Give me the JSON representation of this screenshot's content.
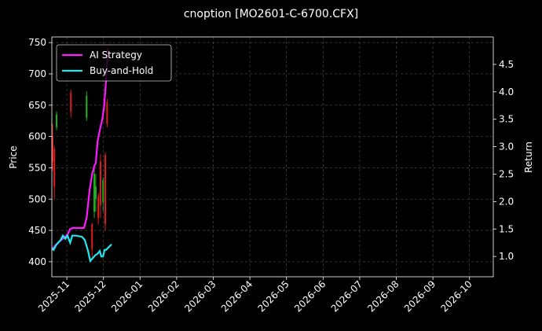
{
  "chart_data": {
    "type": "candlestick",
    "title": "cnoption [MO2601-C-6700.CFX]",
    "y_label": "Price",
    "y2_label": "Return",
    "grid": true,
    "legend": "upper left",
    "up_color": "#1db31d",
    "down_color": "#e01b1b",
    "xlim": [
      -0.41,
      11.65
    ],
    "ylim": [
      376,
      759
    ],
    "y2lim": [
      0.63,
      5.0
    ],
    "xticks": [
      {
        "value": 0,
        "label": "2025-11"
      },
      {
        "value": 1,
        "label": "2025-12"
      },
      {
        "value": 2,
        "label": "2026-01"
      },
      {
        "value": 3,
        "label": "2026-02"
      },
      {
        "value": 4,
        "label": "2026-03"
      },
      {
        "value": 5,
        "label": "2026-04"
      },
      {
        "value": 6,
        "label": "2026-05"
      },
      {
        "value": 7,
        "label": "2026-06"
      },
      {
        "value": 8,
        "label": "2026-07"
      },
      {
        "value": 9,
        "label": "2026-08"
      },
      {
        "value": 10,
        "label": "2026-09"
      },
      {
        "value": 11,
        "label": "2026-10"
      }
    ],
    "yticks": [
      400,
      450,
      500,
      550,
      600,
      650,
      700,
      750
    ],
    "y2ticks": [
      {
        "value": 1,
        "label": "1.0"
      },
      {
        "value": 1.5,
        "label": "1.5"
      },
      {
        "value": 2,
        "label": "2.0"
      },
      {
        "value": 2.5,
        "label": "2.5"
      },
      {
        "value": 3,
        "label": "3.0"
      },
      {
        "value": 3.5,
        "label": "3.5"
      },
      {
        "value": 4,
        "label": "4.0"
      },
      {
        "value": 4.5,
        "label": "4.5"
      }
    ],
    "x": [
      -0.39,
      -0.34,
      -0.28,
      0.11,
      0.54,
      0.69,
      0.75,
      0.79,
      0.86,
      0.92,
      0.99,
      1.05,
      1.1
    ],
    "open": [
      600,
      580,
      615,
      670,
      630,
      460,
      480,
      500,
      505,
      560,
      495,
      570,
      655
    ],
    "high": [
      620,
      585,
      640,
      675,
      672,
      462,
      550,
      540,
      510,
      572,
      535,
      575,
      660
    ],
    "low": [
      545,
      500,
      610,
      630,
      625,
      405,
      470,
      480,
      460,
      470,
      480,
      450,
      615
    ],
    "close": [
      560,
      520,
      635,
      640,
      665,
      420,
      540,
      520,
      470,
      490,
      530,
      460,
      620
    ],
    "series": [
      {
        "name": "AI Strategy",
        "color": "#ff1aff",
        "axis": "y2",
        "x": [
          -0.41,
          -0.32,
          -0.24,
          -0.15,
          -0.06,
          0.02,
          0.09,
          0.17,
          0.32,
          0.47,
          0.54,
          0.62,
          0.69,
          0.75,
          0.79,
          0.84,
          0.9,
          0.97,
          1.01,
          1.05,
          1.09,
          1.12
        ],
        "values": [
          1.12,
          1.2,
          1.25,
          1.3,
          1.35,
          1.4,
          1.5,
          1.52,
          1.52,
          1.52,
          1.7,
          2.2,
          2.5,
          2.65,
          2.7,
          3.1,
          3.3,
          3.5,
          3.7,
          4.0,
          4.4,
          4.8
        ]
      },
      {
        "name": "Buy-and-Hold",
        "color": "#1ee8f0",
        "axis": "y2",
        "x": [
          -0.41,
          -0.36,
          -0.3,
          -0.24,
          -0.17,
          -0.11,
          -0.04,
          0.02,
          0.09,
          0.15,
          0.24,
          0.41,
          0.49,
          0.58,
          0.64,
          0.71,
          0.77,
          0.84,
          0.9,
          0.94,
          0.99,
          1.03,
          1.07,
          1.16,
          1.22
        ],
        "values": [
          1.15,
          1.12,
          1.2,
          1.25,
          1.3,
          1.38,
          1.32,
          1.38,
          1.25,
          1.38,
          1.38,
          1.36,
          1.3,
          1.1,
          0.92,
          0.97,
          1.02,
          1.05,
          1.1,
          1.0,
          1.0,
          1.12,
          1.12,
          1.18,
          1.22
        ]
      }
    ]
  }
}
